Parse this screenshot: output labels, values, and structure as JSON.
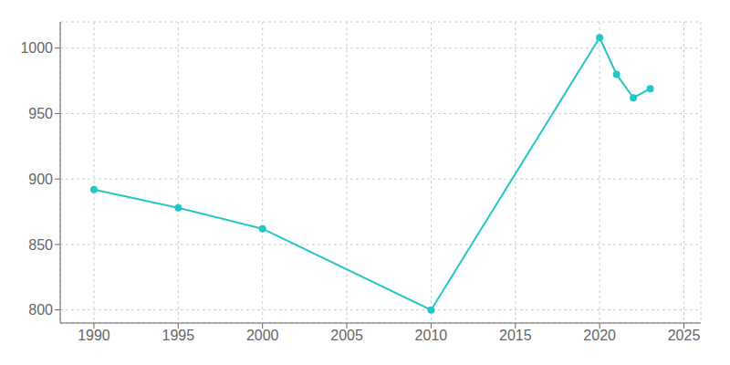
{
  "chart_data": {
    "type": "line",
    "x": [
      1990,
      1995,
      2000,
      2010,
      2020,
      2021,
      2022,
      2023
    ],
    "values": [
      892,
      878,
      862,
      800,
      1008,
      980,
      962,
      969
    ],
    "color": "#26C6C6",
    "marker": "circle",
    "xlim": [
      1988,
      2026
    ],
    "ylim": [
      790,
      1020
    ],
    "xticks": [
      1990,
      1995,
      2000,
      2005,
      2010,
      2015,
      2020,
      2025
    ],
    "yticks": [
      800,
      850,
      900,
      950,
      1000
    ],
    "grid": true
  }
}
